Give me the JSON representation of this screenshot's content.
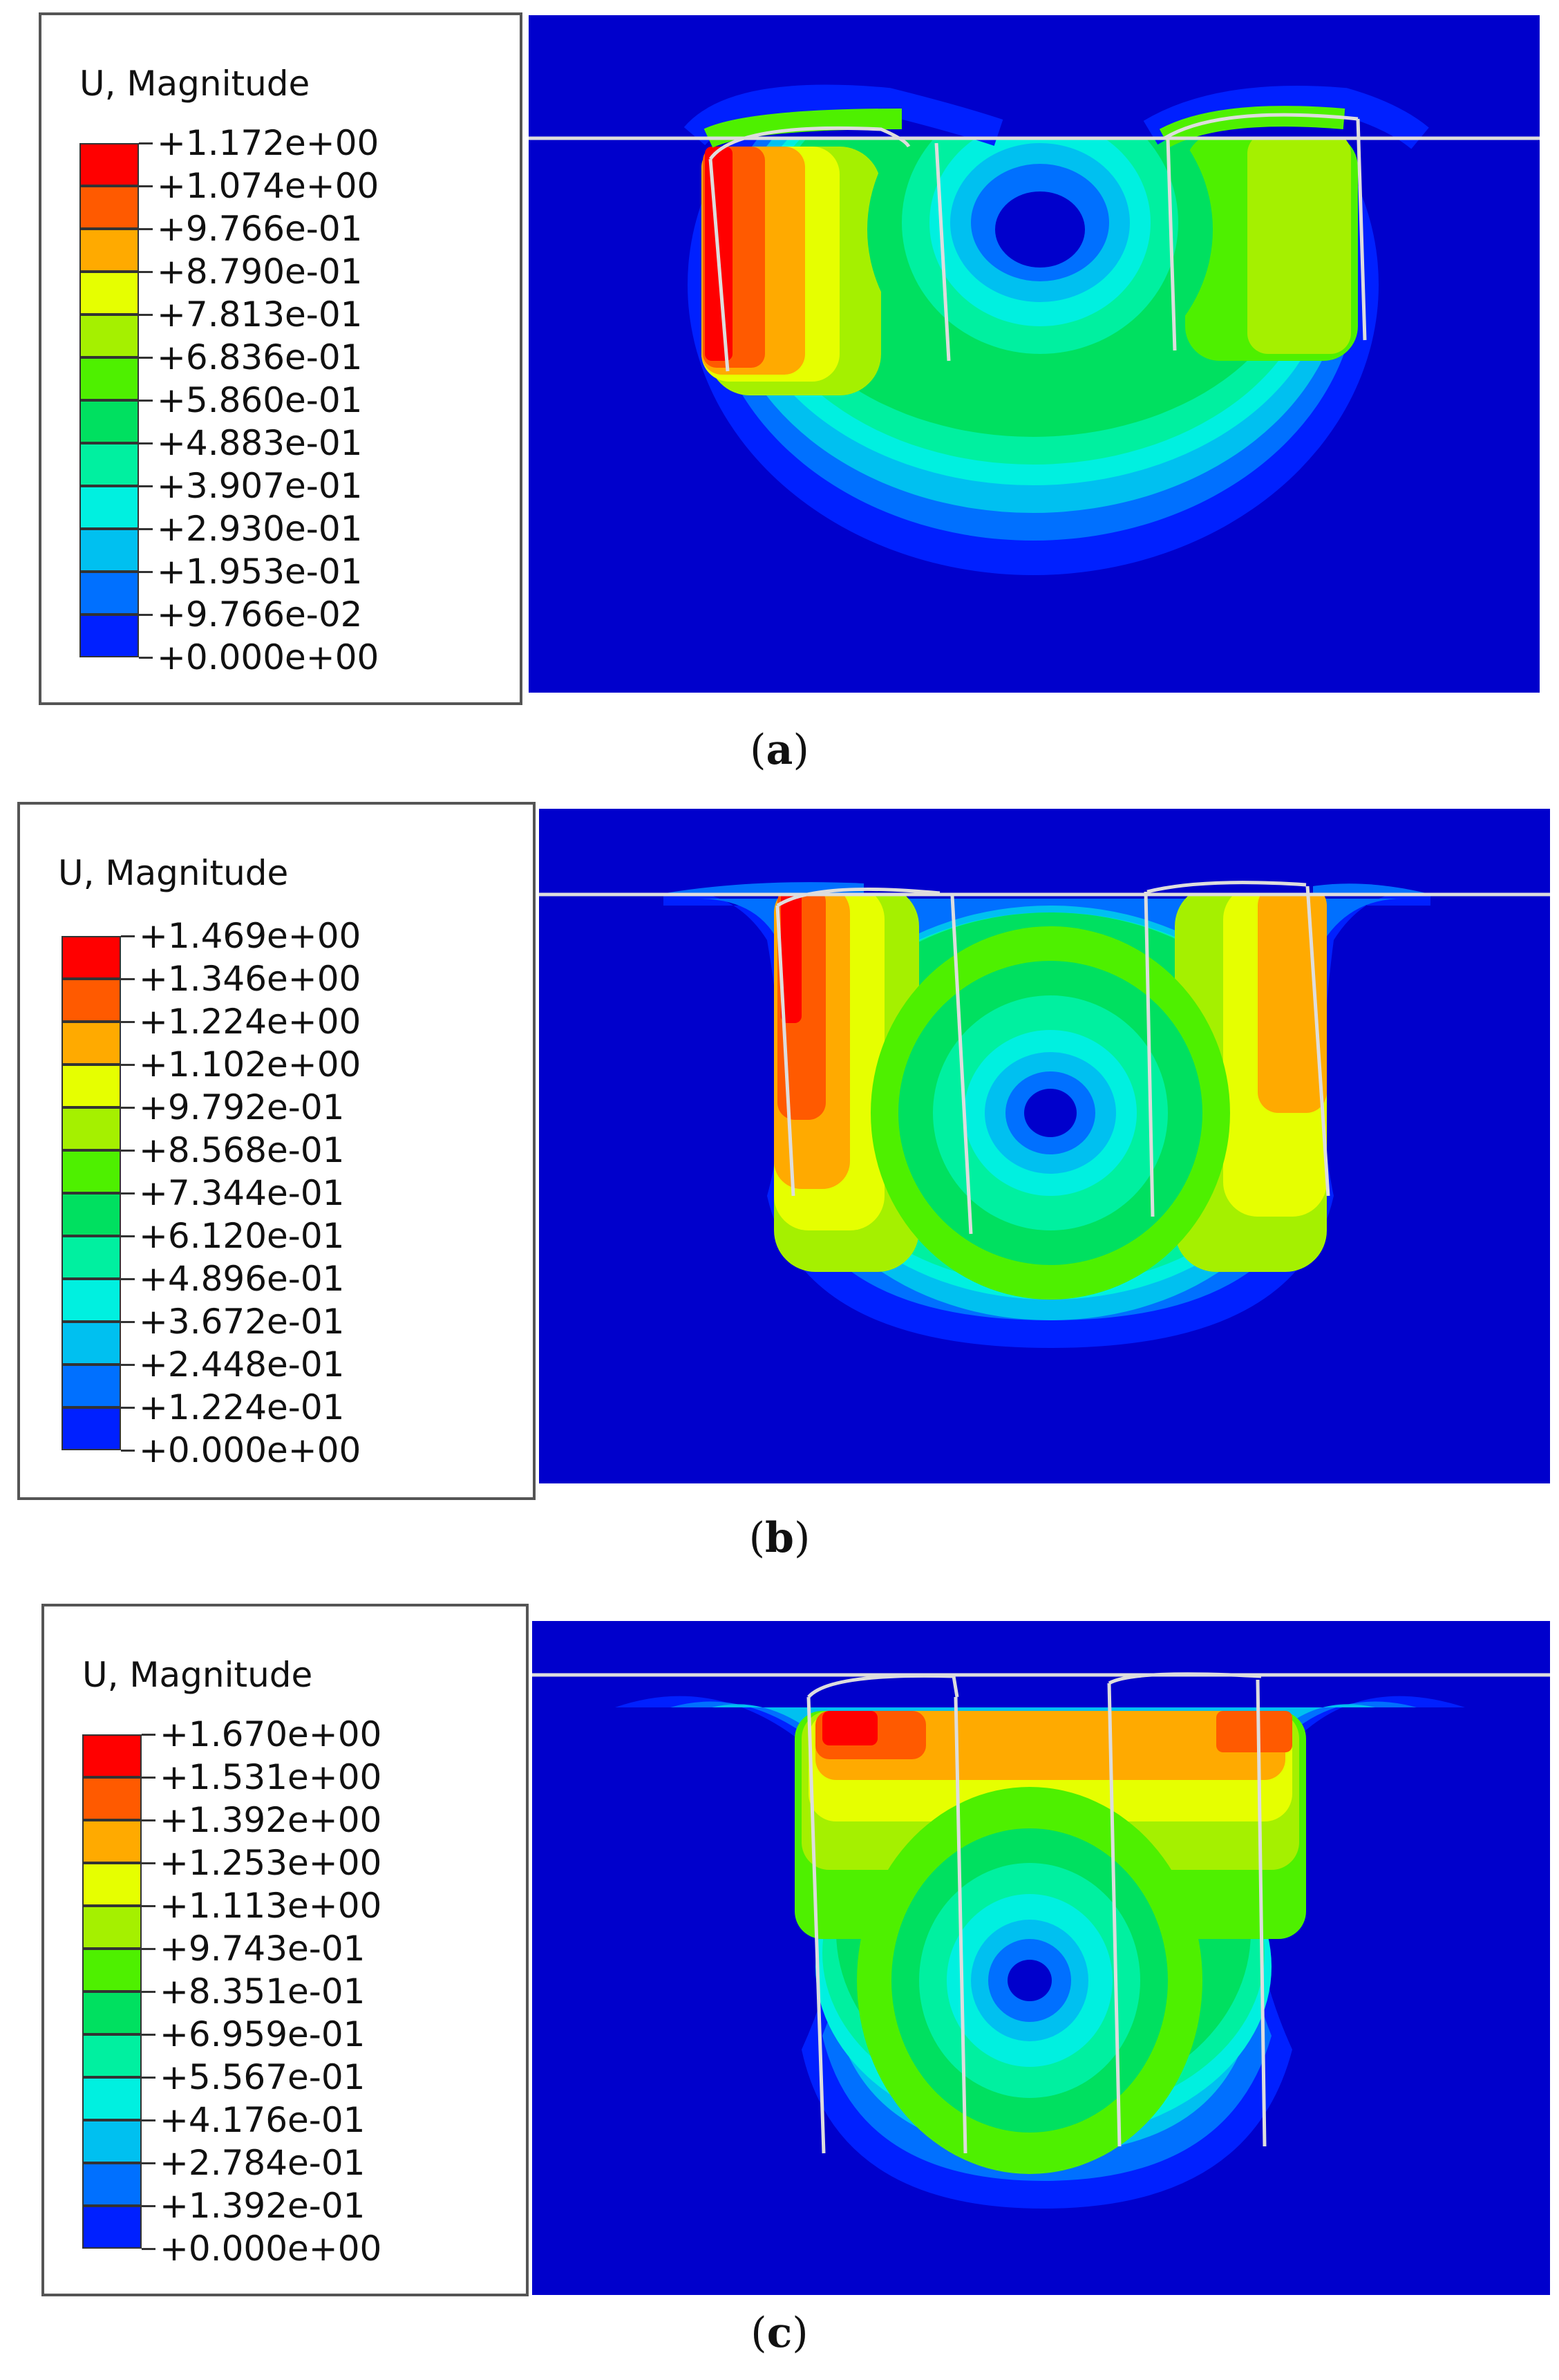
{
  "palette": [
    "#ff0000",
    "#ff5a00",
    "#ffaa00",
    "#e6ff00",
    "#a5f000",
    "#4ef000",
    "#00e060",
    "#00f0a0",
    "#00f0e0",
    "#00c0f0",
    "#0070ff",
    "#0020ff"
  ],
  "background_color": "#0000cc",
  "panels": [
    {
      "id": "a",
      "legend_title": "U, Magnitude",
      "levels": [
        "+1.172e+00",
        "+1.074e+00",
        "+9.766e-01",
        "+8.790e-01",
        "+7.813e-01",
        "+6.836e-01",
        "+5.860e-01",
        "+4.883e-01",
        "+3.907e-01",
        "+2.930e-01",
        "+1.953e-01",
        "+9.766e-02",
        "+0.000e+00"
      ],
      "caption_label": "a"
    },
    {
      "id": "b",
      "legend_title": "U, Magnitude",
      "levels": [
        "+1.469e+00",
        "+1.346e+00",
        "+1.224e+00",
        "+1.102e+00",
        "+9.792e-01",
        "+8.568e-01",
        "+7.344e-01",
        "+6.120e-01",
        "+4.896e-01",
        "+3.672e-01",
        "+2.448e-01",
        "+1.224e-01",
        "+0.000e+00"
      ],
      "caption_label": "b"
    },
    {
      "id": "c",
      "legend_title": "U, Magnitude",
      "levels": [
        "+1.670e+00",
        "+1.531e+00",
        "+1.392e+00",
        "+1.253e+00",
        "+1.113e+00",
        "+9.743e-01",
        "+8.351e-01",
        "+6.959e-01",
        "+5.567e-01",
        "+4.176e-01",
        "+2.784e-01",
        "+1.392e-01",
        "+0.000e+00"
      ],
      "caption_label": "c"
    }
  ]
}
